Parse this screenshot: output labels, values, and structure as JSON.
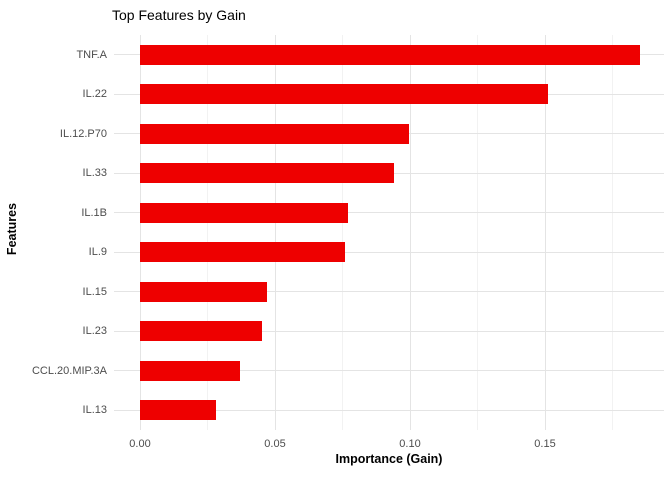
{
  "colors": {
    "bar": "#EE0000",
    "background": "#FFFFFF",
    "grid_major": "#E4E4E4",
    "grid_minor": "#F2F2F2",
    "axis_text": "#4D4D4D",
    "title_text": "#000000"
  },
  "chart_data": {
    "type": "bar",
    "orientation": "horizontal",
    "title": "Top Features by Gain",
    "xlabel": "Importance (Gain)",
    "ylabel": "Features",
    "categories": [
      "TNF.A",
      "IL.22",
      "IL.12.P70",
      "IL.33",
      "IL.1B",
      "IL.9",
      "IL.15",
      "IL.23",
      "CCL.20.MIP.3A",
      "IL.13"
    ],
    "values": [
      0.185,
      0.151,
      0.0996,
      0.094,
      0.077,
      0.076,
      0.047,
      0.045,
      0.037,
      0.028
    ],
    "x_ticks": [
      0.0,
      0.05,
      0.1,
      0.15
    ],
    "x_tick_labels": [
      "0.00",
      "0.05",
      "0.10",
      "0.15"
    ],
    "x_minor_ticks": [
      0.025,
      0.075,
      0.125,
      0.175
    ],
    "xlim": [
      -0.0096,
      0.194
    ],
    "grid": "vertical major+minor, horizontal major at category centers",
    "legend": "none",
    "bar_color": "#EE0000"
  }
}
